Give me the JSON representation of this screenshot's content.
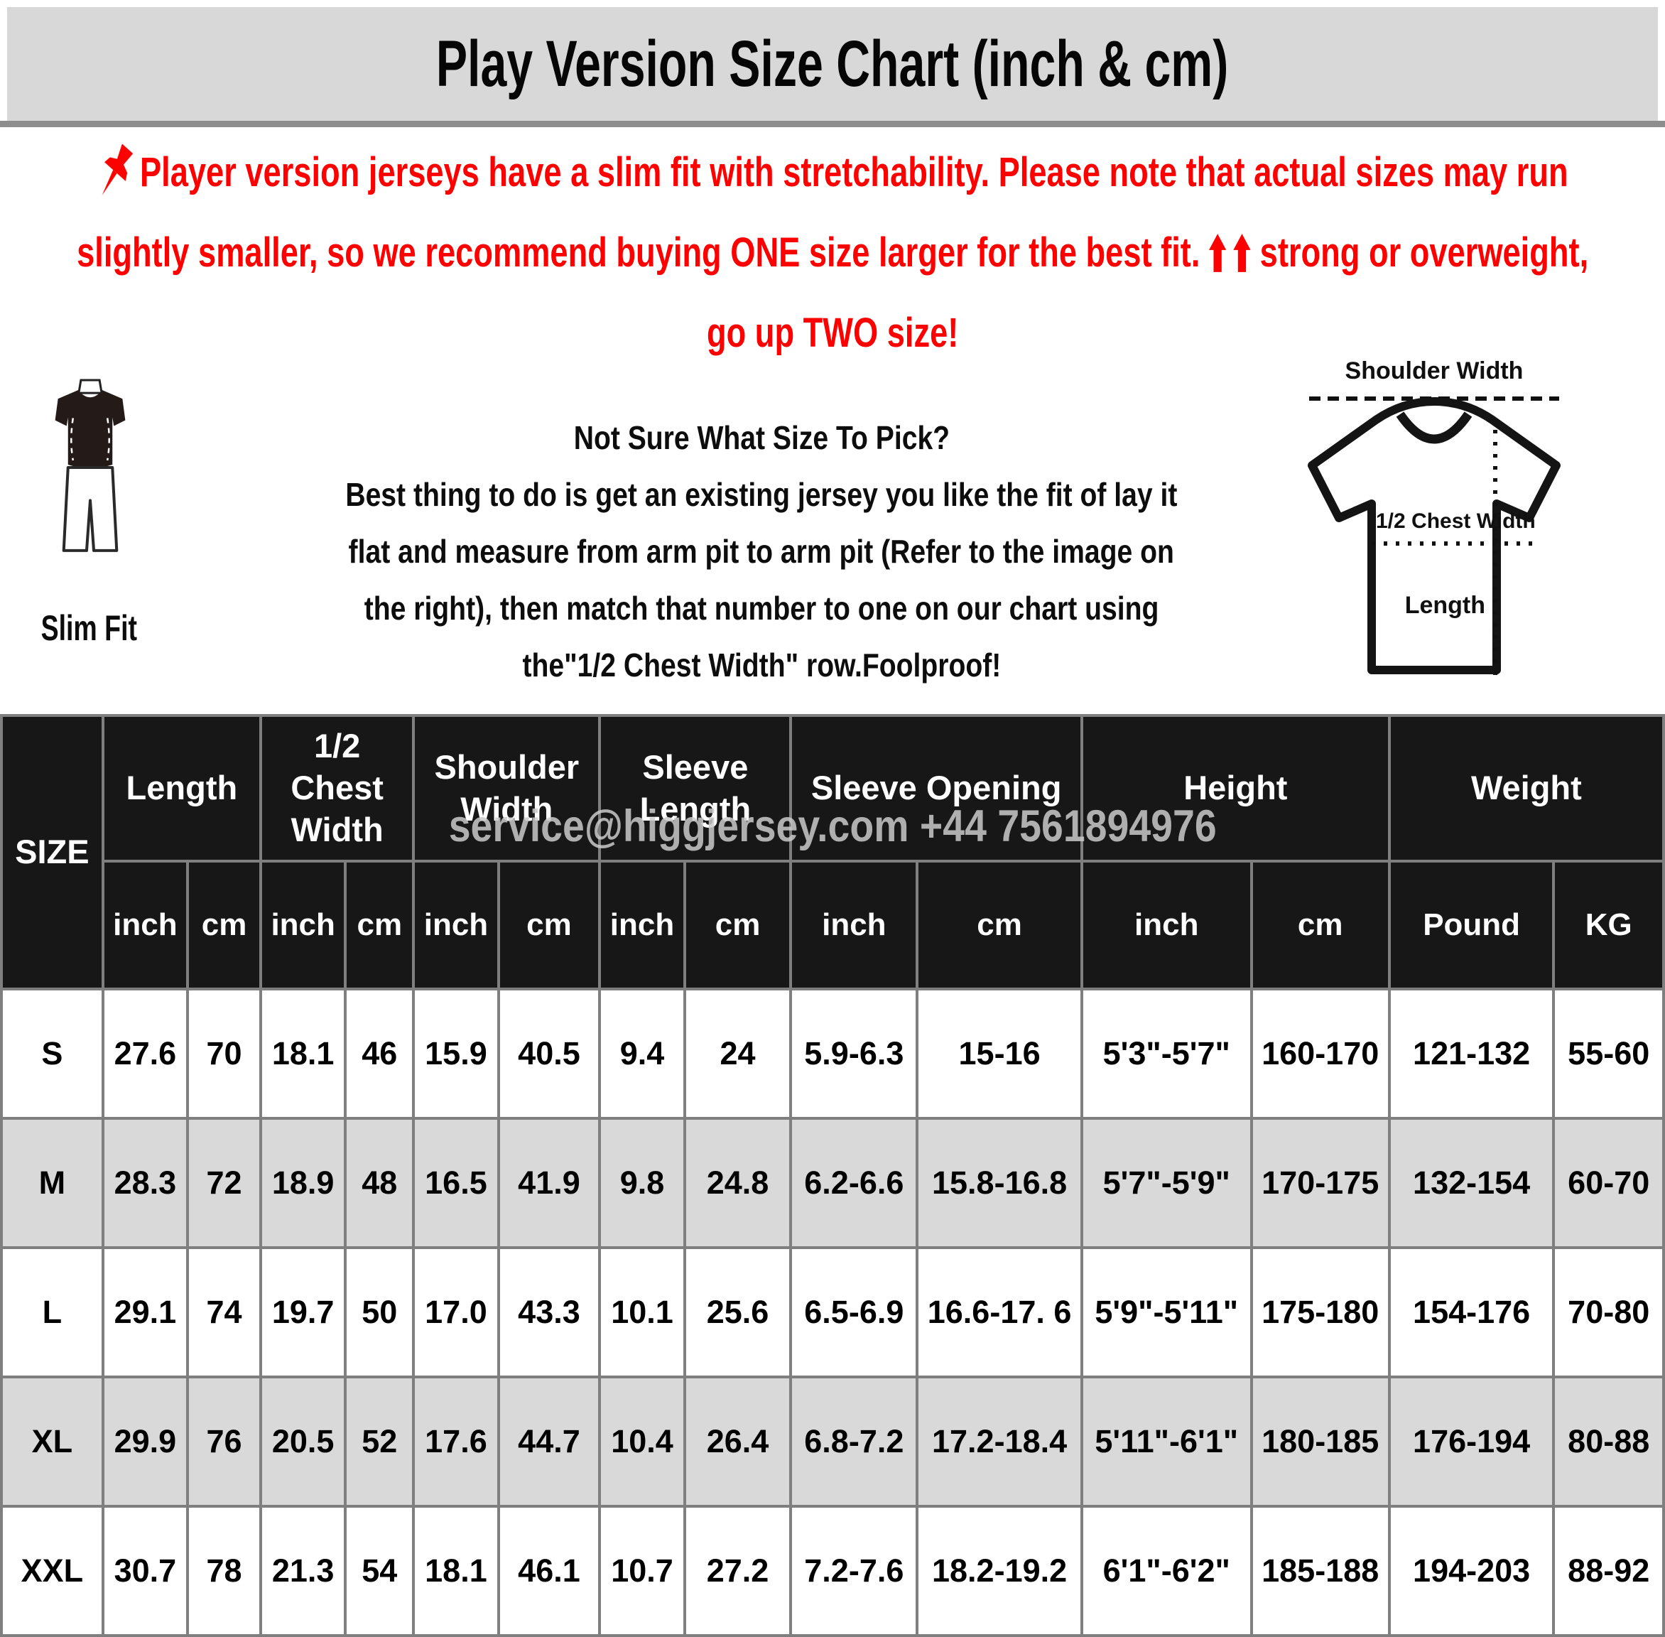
{
  "title": "Play Version Size Chart (inch & cm)",
  "warning": {
    "line1": "Player version jerseys have a slim fit with stretchability. Please note that actual sizes may run",
    "line2_before_arrows": "slightly smaller, so we recommend buying ONE size larger for the best fit.",
    "line2_after_arrows": "strong or overweight,",
    "line3": "go up TWO size!"
  },
  "fit_section": {
    "slim_fit_label": "Slim Fit",
    "guide_lines": [
      "Not Sure What Size To Pick?",
      "Best thing to do is get an existing jersey you like the fit of lay it",
      "flat and measure from arm pit to arm pit (Refer to the image on",
      "the right), then match that number to one on our chart using",
      "the\"1/2 Chest Width\" row.Foolproof!"
    ],
    "diagram_labels": {
      "shoulder_width": "Shoulder Width",
      "half_chest_width": "1/2 Chest Width",
      "length": "Length"
    }
  },
  "watermark": "service@higgjersey.com +44 7561894976",
  "table": {
    "size_header": "SIZE",
    "groups": [
      {
        "label": "Length",
        "sub": [
          "inch",
          "cm"
        ]
      },
      {
        "label": "1/2 Chest Width",
        "sub": [
          "inch",
          "cm"
        ]
      },
      {
        "label": "Shoulder Width",
        "sub": [
          "inch",
          "cm"
        ]
      },
      {
        "label": "Sleeve Length",
        "sub": [
          "inch",
          "cm"
        ]
      },
      {
        "label": "Sleeve Opening",
        "sub": [
          "inch",
          "cm"
        ]
      },
      {
        "label": "Height",
        "sub": [
          "inch",
          "cm"
        ]
      },
      {
        "label": "Weight",
        "sub": [
          "Pound",
          "KG"
        ]
      }
    ],
    "rows": [
      {
        "size": "S",
        "values": [
          "27.6",
          "70",
          "18.1",
          "46",
          "15.9",
          "40.5",
          "9.4",
          "24",
          "5.9-6.3",
          "15-16",
          "5'3\"-5'7\"",
          "160-170",
          "121-132",
          "55-60"
        ]
      },
      {
        "size": "M",
        "values": [
          "28.3",
          "72",
          "18.9",
          "48",
          "16.5",
          "41.9",
          "9.8",
          "24.8",
          "6.2-6.6",
          "15.8-16.8",
          "5'7\"-5'9\"",
          "170-175",
          "132-154",
          "60-70"
        ]
      },
      {
        "size": "L",
        "values": [
          "29.1",
          "74",
          "19.7",
          "50",
          "17.0",
          "43.3",
          "10.1",
          "25.6",
          "6.5-6.9",
          "16.6-17. 6",
          "5'9\"-5'11\"",
          "175-180",
          "154-176",
          "70-80"
        ]
      },
      {
        "size": "XL",
        "values": [
          "29.9",
          "76",
          "20.5",
          "52",
          "17.6",
          "44.7",
          "10.4",
          "26.4",
          "6.8-7.2",
          "17.2-18.4",
          "5'11\"-6'1\"",
          "180-185",
          "176-194",
          "80-88"
        ]
      },
      {
        "size": "XXL",
        "values": [
          "30.7",
          "78",
          "21.3",
          "54",
          "18.1",
          "46.1",
          "10.7",
          "27.2",
          "7.2-7.6",
          "18.2-19.2",
          "6'1\"-6'2\"",
          "185-188",
          "194-203",
          "88-92"
        ]
      }
    ]
  },
  "colors": {
    "accent_red": "#fe0000",
    "header_bg": "#171717",
    "row_alt_bg": "#d9d9d9",
    "title_bg": "#d8d8d8",
    "grid_border": "#7f7f7f"
  }
}
